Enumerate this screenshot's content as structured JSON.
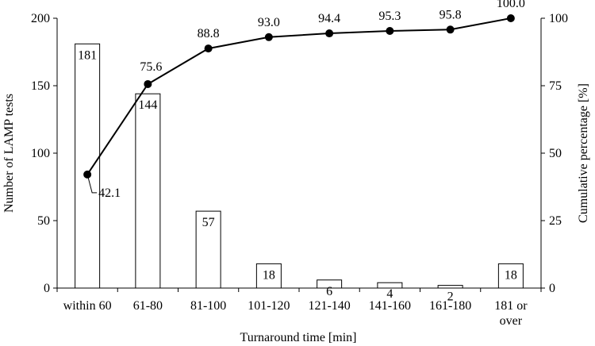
{
  "chart_data": {
    "type": "bar",
    "categories": [
      "within 60",
      "61-80",
      "81-100",
      "101-120",
      "121-140",
      "141-160",
      "161-180",
      "181 or over"
    ],
    "series": [
      {
        "values": [
          181,
          144,
          57,
          18,
          6,
          4,
          2,
          18
        ]
      },
      {
        "values": [
          42.1,
          75.6,
          88.8,
          93.0,
          94.4,
          95.3,
          95.8,
          100.0
        ]
      }
    ],
    "bar_labels": [
      "181",
      "144",
      "57",
      "18",
      "6",
      "4",
      "2",
      "18"
    ],
    "line_labels": [
      "42.1",
      "75.6",
      "88.8",
      "93.0",
      "94.4",
      "95.3",
      "95.8",
      "100.0"
    ],
    "xlabel": "Turnaround time [min]",
    "ylabel": "Number of LAMP tests",
    "y2label": "Cumulative percentage [%]",
    "ylim": [
      0,
      200
    ],
    "y2lim": [
      0,
      100
    ],
    "yticks": [
      "0",
      "50",
      "100",
      "150",
      "200"
    ],
    "y2ticks": [
      "0",
      "25",
      "50",
      "75",
      "100"
    ],
    "grid": false,
    "legend": "none",
    "colors": {
      "bar_fill": "#ffffff",
      "bar_stroke": "#000000",
      "line": "#000000",
      "marker": "#000000"
    }
  }
}
